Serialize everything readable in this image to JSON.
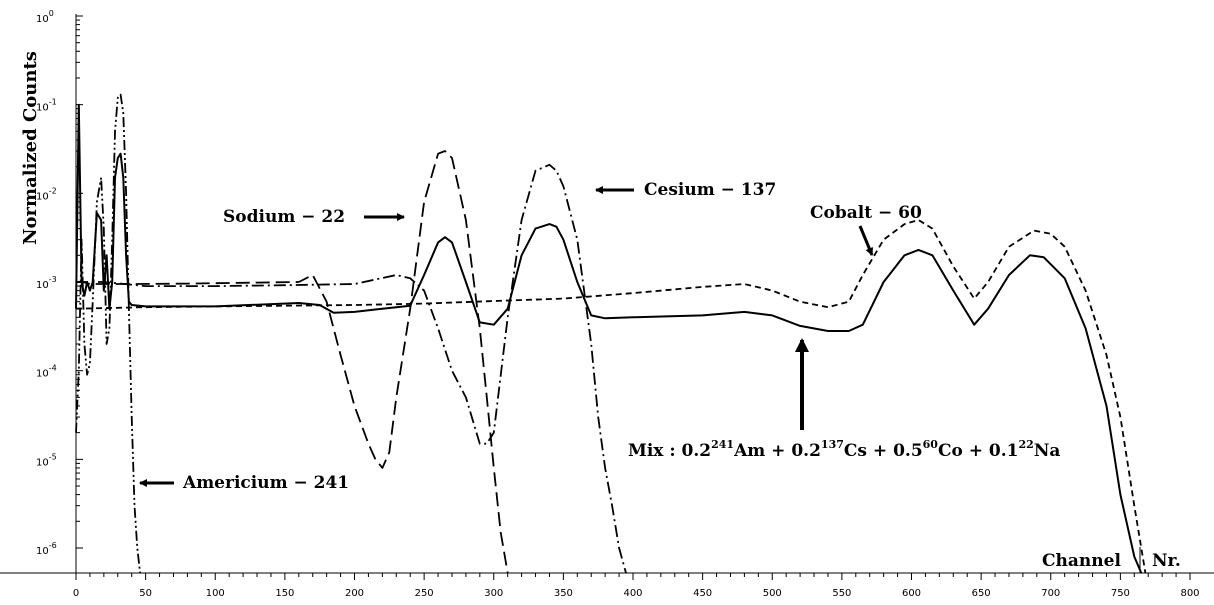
{
  "chart_data": {
    "type": "line",
    "ylabel": "Normalized Counts",
    "xlabel": "Channel Nr.",
    "xlabel_parts": [
      "Channel",
      "Nr."
    ],
    "xlim": [
      0,
      800
    ],
    "ylim": [
      1e-06,
      1
    ],
    "yscale": "log",
    "grid": false,
    "x_major_ticks": [
      0,
      50,
      100,
      150,
      200,
      250,
      300,
      350,
      400,
      450,
      500,
      550,
      600,
      650,
      700,
      750,
      800
    ],
    "x_tick_labels": [
      "0",
      "50",
      "100",
      "150",
      "200",
      "250",
      "300",
      "350",
      "400",
      "450",
      "500",
      "550",
      "600",
      "650",
      "700",
      "750",
      "800"
    ],
    "y_tick_labels": [
      {
        "base": "10",
        "exp": "0"
      },
      {
        "base": "10",
        "exp": "-1"
      },
      {
        "base": "10",
        "exp": "-2"
      },
      {
        "base": "10",
        "exp": "-3"
      },
      {
        "base": "10",
        "exp": "-4"
      },
      {
        "base": "10",
        "exp": "-5"
      },
      {
        "base": "10",
        "exp": "-6"
      }
    ],
    "series": [
      {
        "style": "dash-dot-dot",
        "x": [
          0,
          2,
          4,
          6,
          8,
          10,
          12,
          15,
          18,
          20,
          22,
          24,
          26,
          28,
          30,
          32,
          34,
          36,
          38,
          40,
          42,
          44,
          46
        ],
        "y": [
          2e-05,
          0.0001,
          0.003,
          0.0002,
          9e-05,
          0.00012,
          0.0006,
          0.008,
          0.015,
          0.004,
          0.0002,
          0.0003,
          0.003,
          0.05,
          0.12,
          0.13,
          0.08,
          0.01,
          0.0005,
          3e-05,
          3e-06,
          1e-06,
          5e-07
        ]
      },
      {
        "style": "long-dash",
        "x": [
          0,
          5,
          10,
          20,
          40,
          80,
          120,
          160,
          170,
          180,
          190,
          200,
          210,
          215,
          220,
          225,
          230,
          240,
          250,
          260,
          265,
          270,
          280,
          290,
          295,
          300,
          305,
          310
        ],
        "y": [
          0.001,
          0.001,
          0.00095,
          0.00095,
          0.00095,
          0.00096,
          0.00098,
          0.001,
          0.0012,
          0.0006,
          0.00015,
          4e-05,
          1.5e-05,
          1e-05,
          8e-06,
          1.2e-05,
          5e-05,
          0.0005,
          0.008,
          0.028,
          0.03,
          0.025,
          0.005,
          0.0003,
          5e-05,
          8e-06,
          1.5e-06,
          5e-07
        ]
      },
      {
        "style": "dash-dot",
        "x": [
          0,
          20,
          50,
          100,
          150,
          200,
          230,
          240,
          250,
          260,
          270,
          280,
          290,
          295,
          300,
          310,
          320,
          330,
          340,
          345,
          350,
          360,
          370,
          375,
          380,
          385,
          390,
          395
        ],
        "y": [
          0.001,
          0.001,
          0.0009,
          0.0009,
          0.00092,
          0.00095,
          0.0012,
          0.0011,
          0.0008,
          0.0003,
          0.0001,
          5e-05,
          1.5e-05,
          1.5e-05,
          2e-05,
          0.0004,
          0.005,
          0.018,
          0.021,
          0.018,
          0.012,
          0.003,
          0.0002,
          3e-05,
          8e-06,
          3e-06,
          1e-06,
          4e-07
        ]
      },
      {
        "style": "solid",
        "x": [
          0,
          2,
          4,
          6,
          8,
          10,
          12,
          15,
          18,
          20,
          22,
          24,
          26,
          28,
          30,
          32,
          34,
          36,
          38,
          40,
          50,
          100,
          160,
          175,
          185,
          200,
          220,
          240,
          250,
          260,
          265,
          270,
          280,
          290,
          300,
          310,
          320,
          330,
          340,
          345,
          350,
          360,
          370,
          380,
          400,
          450,
          480,
          500,
          520,
          540,
          555,
          565,
          580,
          595,
          605,
          615,
          630,
          645,
          655,
          670,
          685,
          695,
          710,
          725,
          740,
          750,
          760,
          765
        ],
        "y": [
          0.0005,
          0.1,
          0.001,
          0.0007,
          0.001,
          0.0008,
          0.001,
          0.006,
          0.005,
          0.0008,
          0.002,
          0.0005,
          0.001,
          0.015,
          0.025,
          0.028,
          0.015,
          0.002,
          0.0006,
          0.00055,
          0.00053,
          0.00053,
          0.00058,
          0.00055,
          0.00045,
          0.00046,
          0.0005,
          0.00054,
          0.0012,
          0.0028,
          0.0032,
          0.0028,
          0.001,
          0.00035,
          0.00033,
          0.0005,
          0.002,
          0.004,
          0.0045,
          0.0042,
          0.003,
          0.001,
          0.00042,
          0.00039,
          0.0004,
          0.00042,
          0.00046,
          0.00042,
          0.00032,
          0.00028,
          0.00028,
          0.00033,
          0.001,
          0.002,
          0.0023,
          0.002,
          0.0008,
          0.00033,
          0.0005,
          0.0012,
          0.002,
          0.0019,
          0.0011,
          0.0003,
          4e-05,
          4e-06,
          8e-07,
          3e-07
        ]
      },
      {
        "style": "short-dash",
        "x": [
          0,
          50,
          100,
          150,
          200,
          250,
          300,
          350,
          400,
          450,
          480,
          500,
          520,
          540,
          555,
          565,
          580,
          595,
          605,
          615,
          630,
          645,
          655,
          670,
          688,
          700,
          710,
          725,
          740,
          750,
          760,
          768
        ],
        "y": [
          0.0005,
          0.00052,
          0.00053,
          0.00054,
          0.00055,
          0.00057,
          0.00061,
          0.00065,
          0.00075,
          0.00088,
          0.00095,
          0.0008,
          0.0006,
          0.00052,
          0.0006,
          0.0012,
          0.003,
          0.0045,
          0.005,
          0.004,
          0.0015,
          0.00065,
          0.001,
          0.0025,
          0.0038,
          0.0035,
          0.0025,
          0.0008,
          0.00015,
          3e-05,
          3e-06,
          3e-07
        ]
      }
    ],
    "annotations": [
      {
        "text": "Americium − 241",
        "points_to_channel": 45
      },
      {
        "text": "Sodium − 22",
        "points_to_channel": 238
      },
      {
        "text": "Cesium − 137",
        "points_to_channel": 372
      },
      {
        "text": "Cobalt − 60",
        "points_to_channel": 573
      },
      {
        "text_parts": [
          "Mix : 0.2",
          "241",
          "Am + 0.2",
          "137",
          "Cs + 0.5",
          "60",
          "Co + 0.1",
          "22",
          "Na"
        ],
        "points_to_channel": 520
      }
    ]
  }
}
